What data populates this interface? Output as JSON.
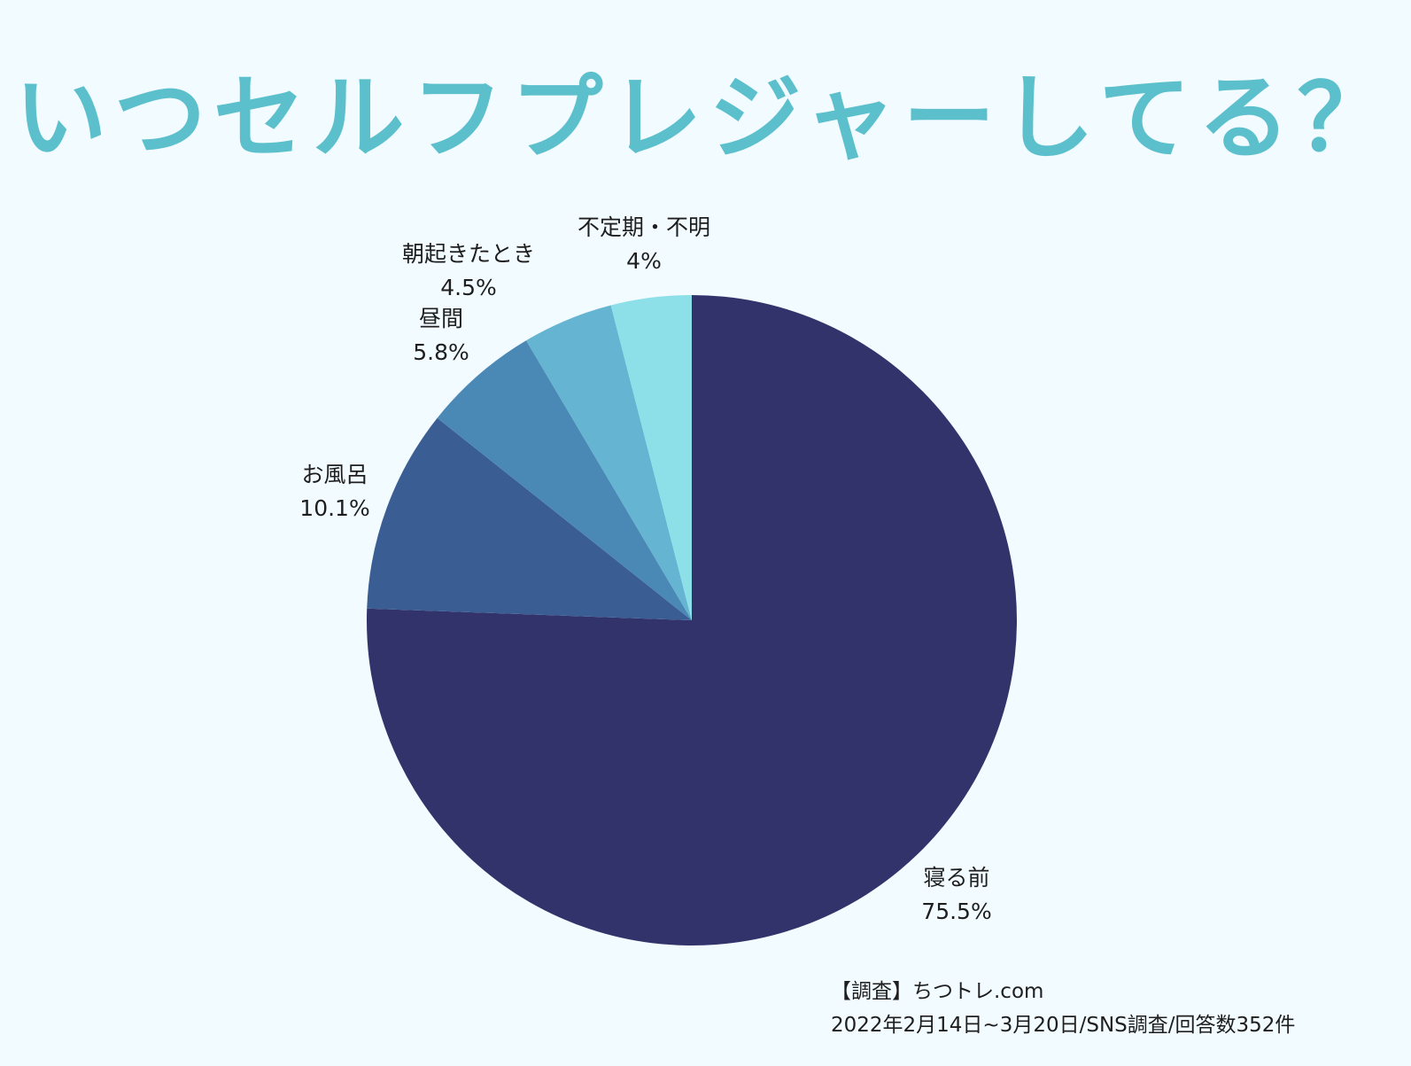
{
  "title": "いつセルフプレジャーしてる？",
  "chart_data": {
    "type": "pie",
    "title": "いつセルフプレジャーしてる？",
    "start_angle": "12 o'clock, clockwise",
    "categories": [
      "寝る前",
      "お風呂",
      "昼間",
      "朝起きたとき",
      "不定期・不明"
    ],
    "values": [
      75.5,
      10.1,
      5.8,
      4.5,
      4
    ],
    "unit": "%",
    "colors": [
      "#33336b",
      "#3a5e94",
      "#4a88b5",
      "#65b4d1",
      "#8de0e8"
    ],
    "labels": [
      {
        "name": "寝る前",
        "value": "75.5%"
      },
      {
        "name": "お風呂",
        "value": "10.1%"
      },
      {
        "name": "昼間",
        "value": "5.8%"
      },
      {
        "name": "朝起きたとき",
        "value": "4.5%"
      },
      {
        "name": "不定期・不明",
        "value": "4%"
      }
    ],
    "legend": "none (direct labels)"
  },
  "source": {
    "line1": "【調査】ちつトレ.com",
    "line2": "2022年2月14日~3月20日/SNS調査/回答数352件"
  }
}
